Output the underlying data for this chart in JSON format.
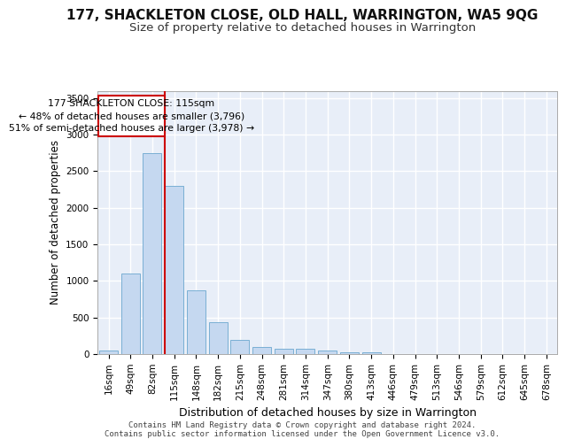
{
  "title": "177, SHACKLETON CLOSE, OLD HALL, WARRINGTON, WA5 9QG",
  "subtitle": "Size of property relative to detached houses in Warrington",
  "xlabel": "Distribution of detached houses by size in Warrington",
  "ylabel": "Number of detached properties",
  "categories": [
    "16sqm",
    "49sqm",
    "82sqm",
    "115sqm",
    "148sqm",
    "182sqm",
    "215sqm",
    "248sqm",
    "281sqm",
    "314sqm",
    "347sqm",
    "380sqm",
    "413sqm",
    "446sqm",
    "479sqm",
    "513sqm",
    "546sqm",
    "579sqm",
    "612sqm",
    "645sqm",
    "678sqm"
  ],
  "values": [
    50,
    1100,
    2750,
    2300,
    875,
    430,
    190,
    100,
    75,
    75,
    50,
    30,
    20,
    0,
    0,
    0,
    0,
    0,
    0,
    0,
    0
  ],
  "bar_color": "#c5d8f0",
  "bar_edgecolor": "#7aafd4",
  "vline_x_index": 3,
  "vline_color": "#cc0000",
  "annotation_line1": "177 SHACKLETON CLOSE: 115sqm",
  "annotation_line2": "← 48% of detached houses are smaller (3,796)",
  "annotation_line3": "51% of semi-detached houses are larger (3,978) →",
  "annotation_box_color": "#ffffff",
  "annotation_box_edgecolor": "#cc0000",
  "ylim": [
    0,
    3600
  ],
  "yticks": [
    0,
    500,
    1000,
    1500,
    2000,
    2500,
    3000,
    3500
  ],
  "background_color": "#e8eef8",
  "footer_line1": "Contains HM Land Registry data © Crown copyright and database right 2024.",
  "footer_line2": "Contains public sector information licensed under the Open Government Licence v3.0.",
  "title_fontsize": 11,
  "subtitle_fontsize": 9.5,
  "xlabel_fontsize": 9,
  "ylabel_fontsize": 8.5,
  "tick_fontsize": 7.5,
  "footer_fontsize": 6.5,
  "annotation_fontsize": 7.8
}
